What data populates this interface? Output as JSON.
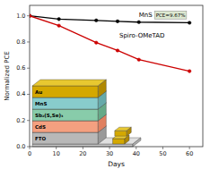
{
  "chart_data": {
    "type": "line",
    "xlabel": "Days",
    "ylabel": "Normalized PCE",
    "x": [
      0,
      11,
      25,
      33,
      41,
      60
    ],
    "series": [
      {
        "name": "MnS",
        "color": "#000000",
        "marker": "circle",
        "values": [
          1.0,
          0.975,
          0.965,
          0.958,
          0.952,
          0.947
        ]
      },
      {
        "name": "Spiro-OMeTAD",
        "color": "#cc0000",
        "marker": "circle",
        "values": [
          1.0,
          0.925,
          0.795,
          0.735,
          0.665,
          0.577
        ]
      }
    ],
    "annotations": [
      "FTO",
      "CdS",
      "Sb₂(S,Se)₃",
      "MnS",
      "Au",
      "PCE=9.67%"
    ],
    "xlim": [
      0,
      65
    ],
    "ylim": [
      0,
      1.08
    ],
    "xticks": [
      0,
      10,
      20,
      30,
      40,
      50,
      60
    ],
    "yticks": [
      {
        "value": 0,
        "label": "0.0"
      },
      0.2,
      0.4,
      0.6,
      0.8,
      {
        "value": 1.0,
        "label": "1.0"
      }
    ],
    "grid": false
  }
}
